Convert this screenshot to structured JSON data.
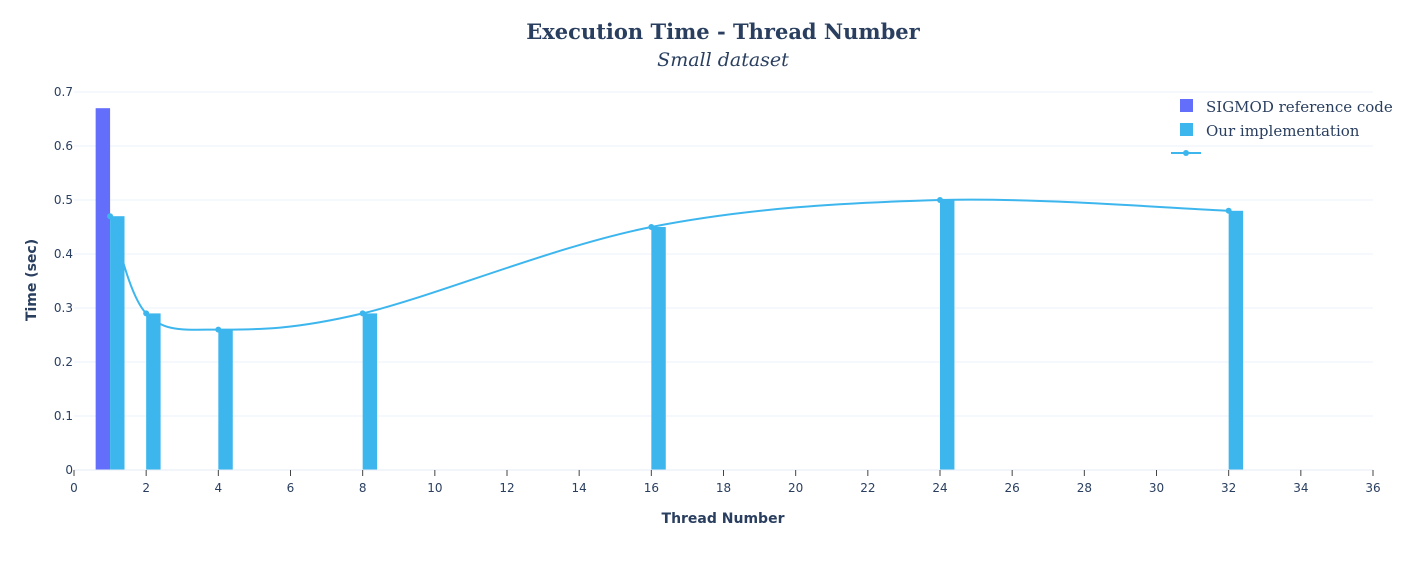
{
  "chart_data": {
    "type": "bar",
    "title": "Execution Time - Thread Number",
    "subtitle": "Small dataset",
    "xlabel": "Thread Number",
    "ylabel": "Time (sec)",
    "xlim": [
      0,
      36
    ],
    "ylim": [
      0,
      0.7
    ],
    "x_ticks": [
      0,
      2,
      4,
      6,
      8,
      10,
      12,
      14,
      16,
      18,
      20,
      22,
      24,
      26,
      28,
      30,
      32,
      34,
      36
    ],
    "x_tick_labels": [
      "0",
      "2",
      "4",
      "6",
      "8",
      "10",
      "12",
      "14",
      "16",
      "18",
      "20",
      "22",
      "24",
      "26",
      "28",
      "30",
      "32",
      "34",
      "36"
    ],
    "y_ticks": [
      0,
      0.1,
      0.2,
      0.3,
      0.4,
      0.5,
      0.6,
      0.7
    ],
    "y_tick_labels": [
      "0",
      "0.1",
      "0.2",
      "0.3",
      "0.4",
      "0.5",
      "0.6",
      "0.7"
    ],
    "grid": true,
    "legend_position": "top-right",
    "series": [
      {
        "name": "SIGMOD reference code",
        "kind": "bar",
        "color": "#636efa",
        "x": [
          1
        ],
        "y": [
          0.67
        ]
      },
      {
        "name": "Our implementation",
        "kind": "bar",
        "color": "#3db6ee",
        "x": [
          1,
          2,
          4,
          8,
          16,
          24,
          32
        ],
        "y": [
          0.47,
          0.29,
          0.26,
          0.29,
          0.45,
          0.5,
          0.48
        ]
      },
      {
        "name": "",
        "kind": "line",
        "shape": "spline",
        "color": "#3db6ee",
        "x": [
          1,
          2,
          4,
          8,
          16,
          24,
          32
        ],
        "y": [
          0.47,
          0.29,
          0.26,
          0.29,
          0.45,
          0.5,
          0.48
        ]
      }
    ]
  }
}
